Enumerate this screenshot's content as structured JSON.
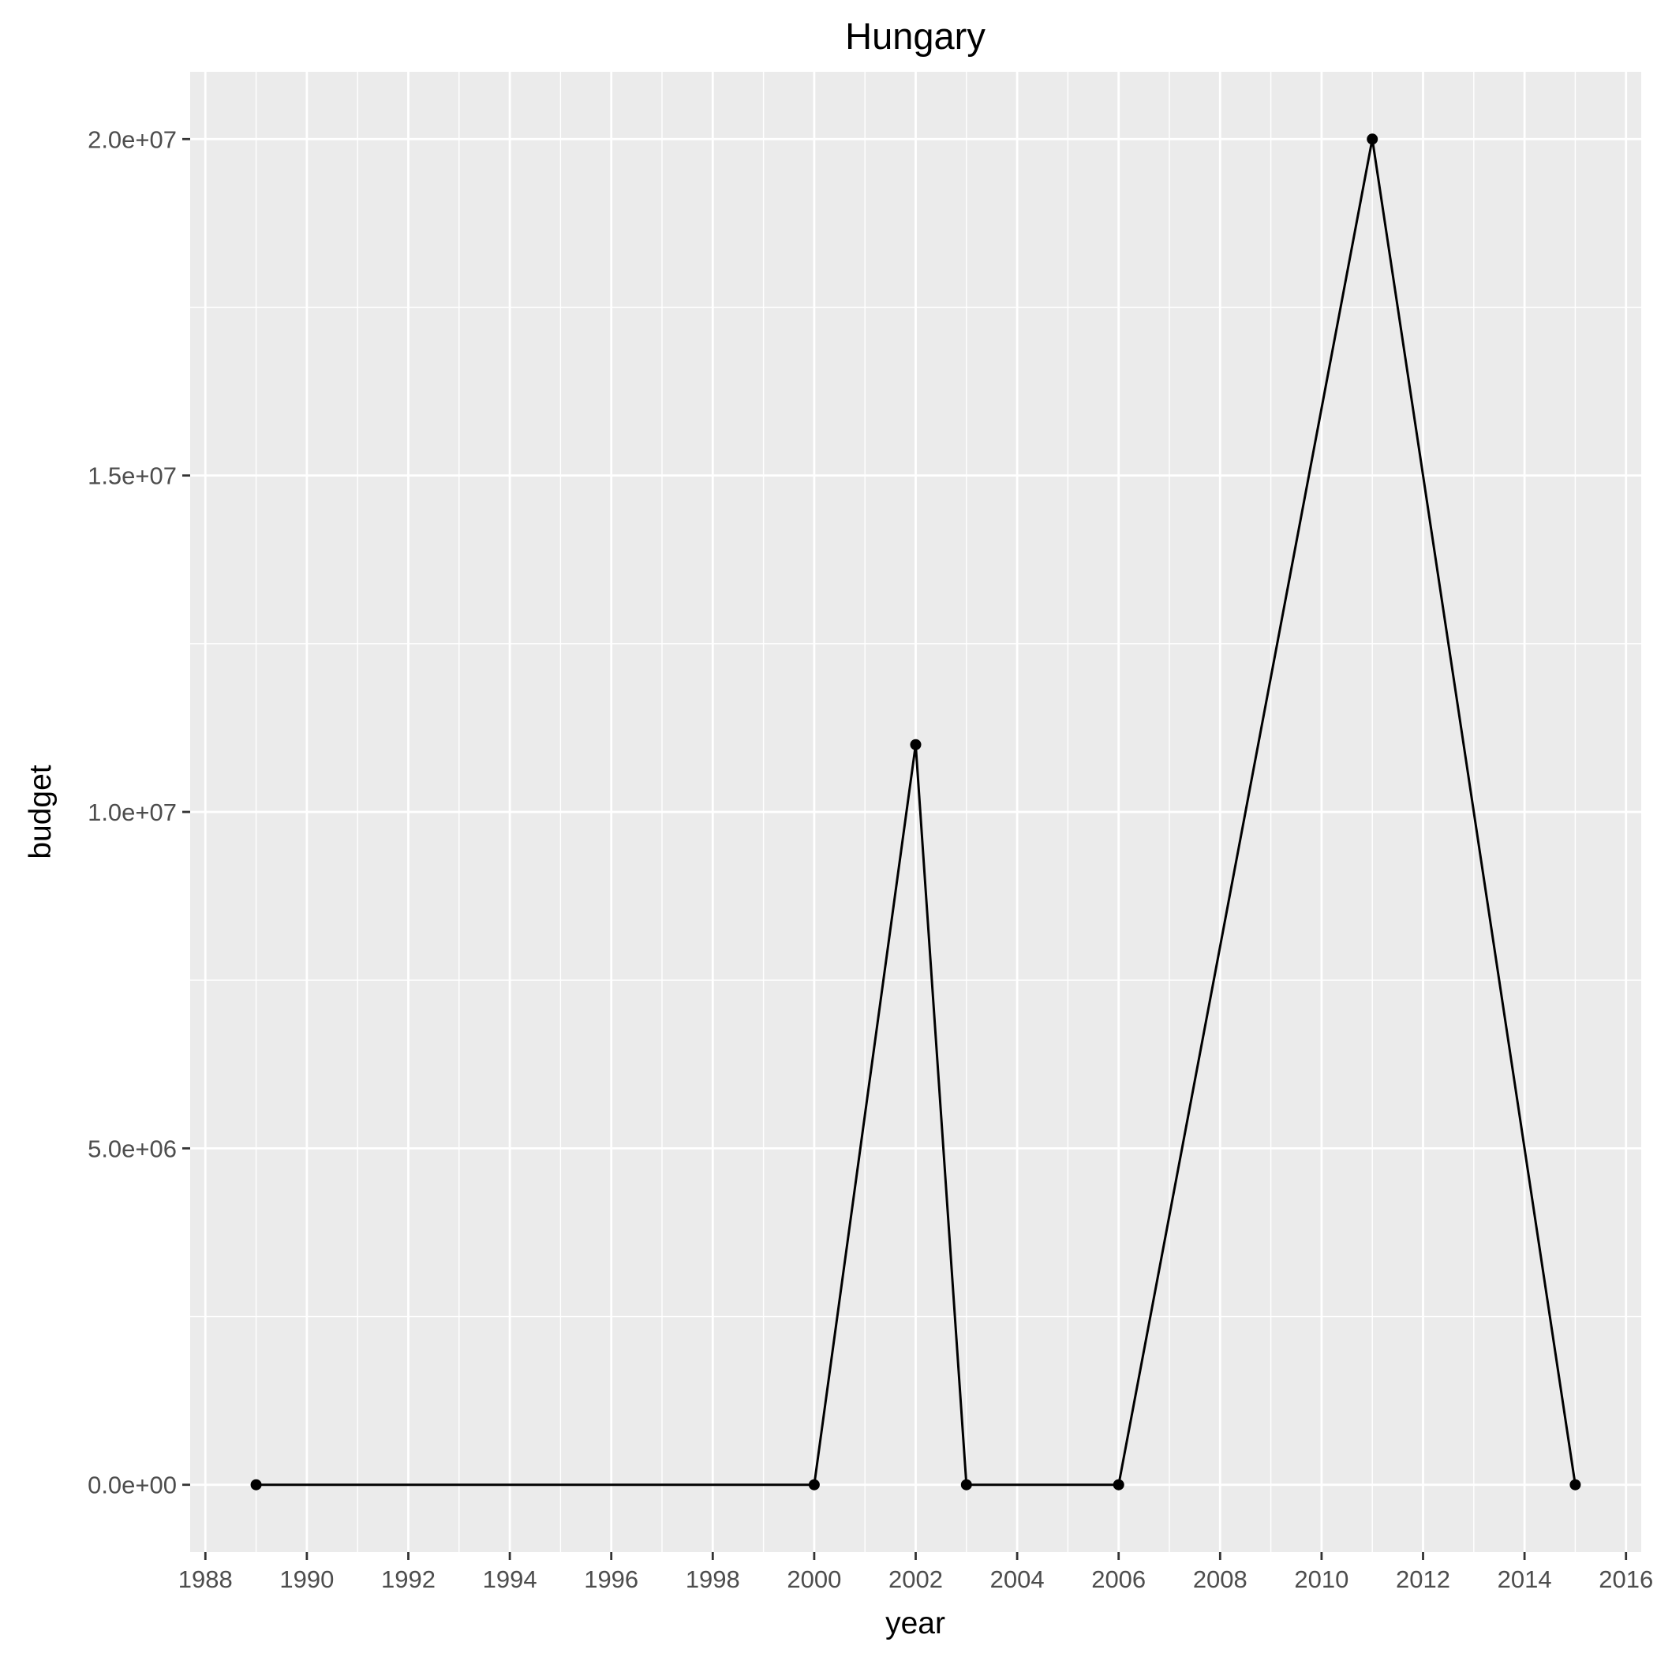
{
  "chart_data": {
    "type": "line",
    "title": "Hungary",
    "xlabel": "year",
    "ylabel": "budget",
    "xlim": [
      1987.7,
      2016.3
    ],
    "ylim": [
      -1000000,
      21000000
    ],
    "x_ticks": [
      1988,
      1990,
      1992,
      1994,
      1996,
      1998,
      2000,
      2002,
      2004,
      2006,
      2008,
      2010,
      2012,
      2014,
      2016
    ],
    "x_tick_labels": [
      "1988",
      "1990",
      "1992",
      "1994",
      "1996",
      "1998",
      "2000",
      "2002",
      "2004",
      "2006",
      "2008",
      "2010",
      "2012",
      "2014",
      "2016"
    ],
    "x_minor_ticks": [
      1989,
      1991,
      1993,
      1995,
      1997,
      1999,
      2001,
      2003,
      2005,
      2007,
      2009,
      2011,
      2013,
      2015
    ],
    "y_ticks": [
      0,
      5000000,
      10000000,
      15000000,
      20000000
    ],
    "y_tick_labels": [
      "0.0e+00",
      "5.0e+06",
      "1.0e+07",
      "1.5e+07",
      "2.0e+07"
    ],
    "y_minor_ticks": [
      2500000,
      7500000,
      12500000,
      17500000
    ],
    "grid": true,
    "legend": "none",
    "background_color": "#EBEBEB",
    "grid_color": "#FFFFFF",
    "series_color": "#000000",
    "points": [
      {
        "x": 1989,
        "y": 0
      },
      {
        "x": 2000,
        "y": 0
      },
      {
        "x": 2002,
        "y": 11000000
      },
      {
        "x": 2003,
        "y": 0
      },
      {
        "x": 2006,
        "y": 0
      },
      {
        "x": 2011,
        "y": 20000000
      },
      {
        "x": 2015,
        "y": 0
      }
    ]
  }
}
